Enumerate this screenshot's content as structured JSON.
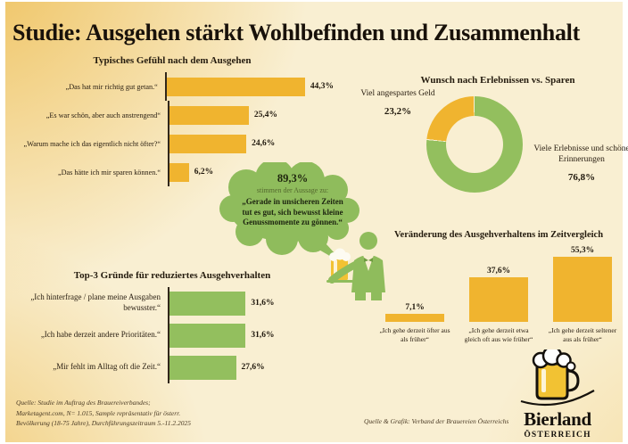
{
  "title": "Studie: Ausgehen stärkt Wohlbefinden und Zusammenhalt",
  "colors": {
    "gold": "#f0b42f",
    "green": "#93bf5e",
    "background": "#f9efd2",
    "text": "#2b2013"
  },
  "chart_data": [
    {
      "id": "feelings",
      "type": "bar",
      "orientation": "horizontal",
      "title": "Typisches Gefühl nach dem Ausgehen",
      "categories": [
        "„Das hat mir richtig gut getan.“",
        "„Es war schön, aber auch anstrengend“",
        "„Warum mache ich das eigentlich nicht öfter?“",
        "„Das hätte ich mir sparen können.“"
      ],
      "values": [
        44.3,
        25.4,
        24.6,
        6.2
      ],
      "value_labels": [
        "44,3%",
        "25,4%",
        "24,6%",
        "6,2%"
      ],
      "bar_color": "#f0b42f",
      "xlim": [
        0,
        50
      ],
      "grid": false
    },
    {
      "id": "wish",
      "type": "pie",
      "variant": "donut",
      "title": "Wunsch nach Erlebnissen vs. Sparen",
      "slices": [
        {
          "label": "Viele Erlebnisse und schöne Erinnerungen",
          "value": 76.8,
          "value_label": "76,8%",
          "color": "#93bf5e"
        },
        {
          "label": "Viel angespartes Geld",
          "value": 23.2,
          "value_label": "23,2%",
          "color": "#f0b42f"
        }
      ]
    },
    {
      "id": "change",
      "type": "bar",
      "orientation": "vertical",
      "title": "Veränderung des Ausgehverhaltens im Zeitvergleich",
      "categories": [
        "„Ich gehe derzeit öfter aus als früher“",
        "„Ich gehe derzeit etwa gleich oft aus wie früher“",
        "„Ich gehe derzeit seltener aus als früher“"
      ],
      "values": [
        7.1,
        37.6,
        55.3
      ],
      "value_labels": [
        "7,1%",
        "37,6%",
        "55,3%"
      ],
      "bar_color": "#f0b42f",
      "ylim": [
        0,
        60
      ],
      "grid": false
    },
    {
      "id": "reasons",
      "type": "bar",
      "orientation": "horizontal",
      "title": "Top-3 Gründe für reduziertes Ausgehverhalten",
      "categories": [
        "„Ich hinterfrage / plane meine Ausgaben bewusster.“",
        "„Ich habe derzeit andere Prioritäten.“",
        "„Mir fehlt im Alltag oft die Zeit.“"
      ],
      "values": [
        31.6,
        31.6,
        27.6
      ],
      "value_labels": [
        "31,6%",
        "31,6%",
        "27,6%"
      ],
      "bar_color": "#93bf5e",
      "xlim": [
        0,
        40
      ],
      "grid": false
    }
  ],
  "bubble": {
    "percent": "89,3%",
    "lead": "stimmen der Aussage zu:",
    "quote": "„Gerade in unsicheren Zeiten tut es gut, sich bewusst kleine Genussmomente zu gönnen.“"
  },
  "footnote": {
    "line1": "Quelle: Studie im Auftrag des Brauereiverbandes;",
    "line2": "Marketagent.com, N= 1.015, Sample repräsentativ für österr.",
    "line3": "Bevölkerung (18-75 Jahre), Durchführungszeitraum 5.-11.2.2025"
  },
  "credit": "Quelle & Grafik: Verband der Brauereien Österreichs",
  "logo": {
    "name": "Bierland",
    "subtitle": "ÖSTERREICH"
  }
}
